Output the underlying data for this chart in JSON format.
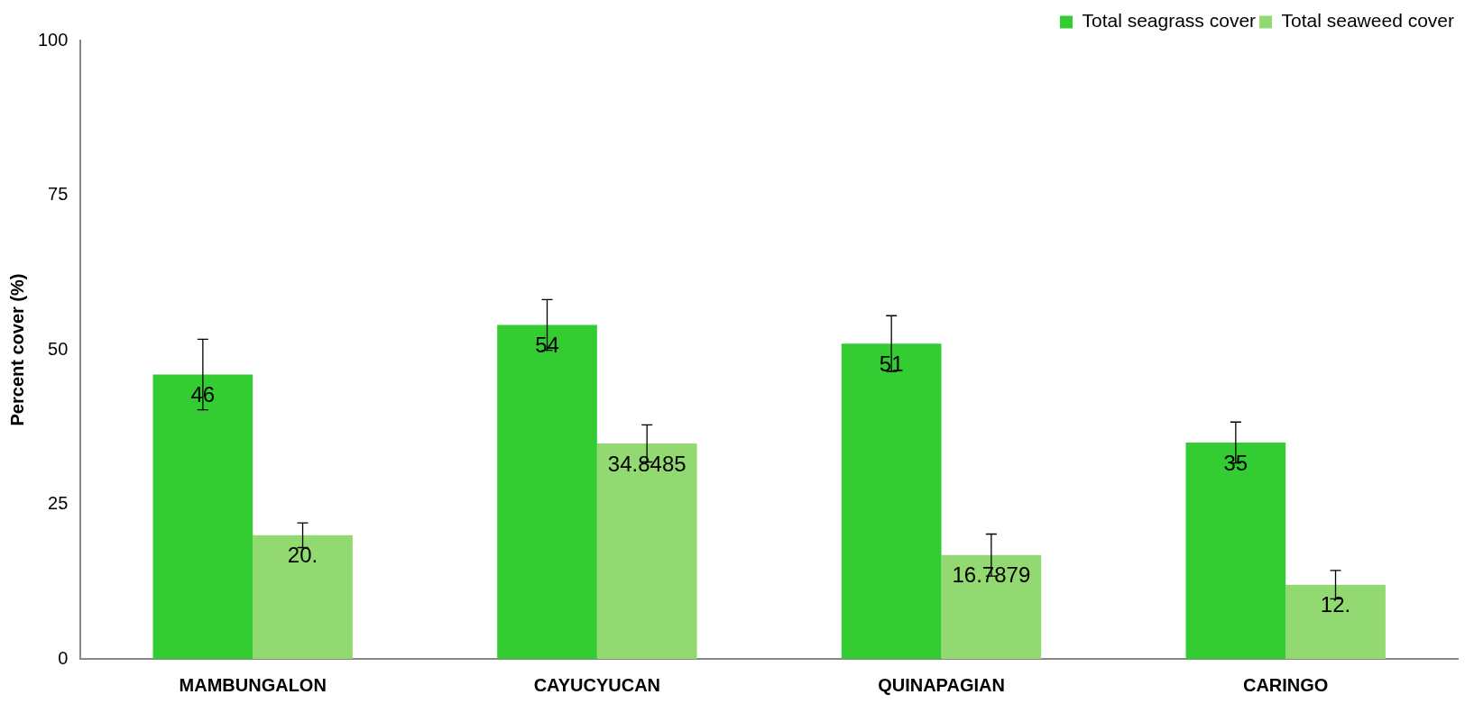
{
  "chart_data": {
    "type": "bar",
    "categories": [
      "MAMBUNGALON",
      "CAYUCYUCAN",
      "QUINAPAGIAN",
      "CARINGO"
    ],
    "ylabel": "Percent cover (%)",
    "ylim": [
      0,
      100
    ],
    "yticks": [
      0,
      25,
      50,
      75,
      100
    ],
    "grid": false,
    "legend": "top right",
    "series": [
      {
        "name": "Total seagrass cover",
        "color": "#33cc33",
        "values": [
          46,
          54,
          51,
          35
        ],
        "errors": [
          5.7,
          4.1,
          4.5,
          3.3
        ],
        "value_labels": [
          "46",
          "54",
          "51",
          "35"
        ]
      },
      {
        "name": "Total seaweed cover",
        "color": "#92d971",
        "values": [
          20,
          34.8485,
          16.7879,
          12
        ],
        "errors": [
          2,
          3,
          3.4,
          2.3
        ],
        "value_labels": [
          "20.",
          "34.8485",
          "16.7879",
          "12."
        ]
      }
    ]
  }
}
